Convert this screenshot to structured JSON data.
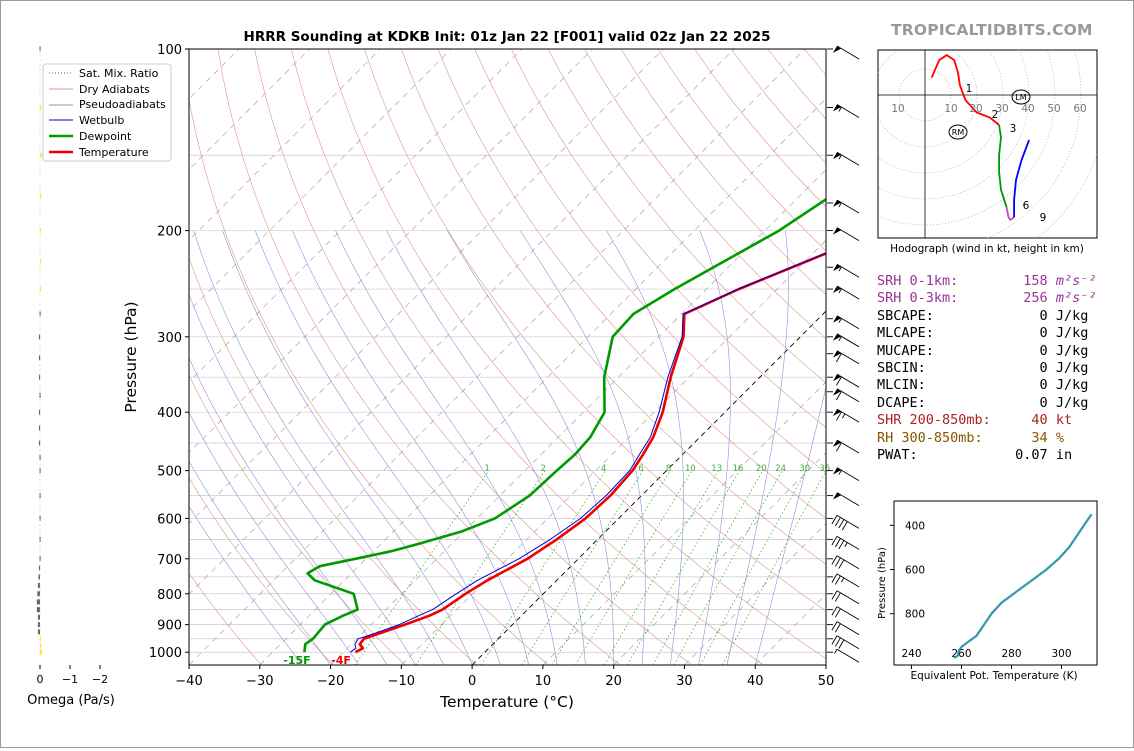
{
  "chart_data": [
    {
      "type": "line",
      "name": "skew-t",
      "title": "HRRR Sounding at KDKB Init: 01z Jan 22 [F001] valid 02z Jan 22 2025",
      "xlabel": "Temperature (°C)",
      "ylabel": "Pressure (hPa)",
      "xlim": [
        -40,
        50
      ],
      "ylim": [
        1050,
        100
      ],
      "y_scale": "log",
      "skew_deg": 45,
      "x_ticks": [
        "−40",
        "−30",
        "−20",
        "−10",
        "0",
        "10",
        "20",
        "30",
        "40",
        "50"
      ],
      "y_ticks": [
        "100",
        "200",
        "300",
        "400",
        "500",
        "600",
        "700",
        "800",
        "900",
        "1000"
      ],
      "legend": [
        "Sat. Mix. Ratio",
        "Dry Adiabats",
        "Pseudoadiabats",
        "Wetbulb",
        "Dewpoint",
        "Temperature"
      ],
      "legend_location": "upper-left",
      "mixing_ratio_labels": [
        "1",
        "2",
        "4",
        "6",
        "8",
        "10",
        "13",
        "16",
        "20",
        "24",
        "30",
        "36"
      ],
      "surface_labels": {
        "dewpoint": "-15F",
        "temperature": "-4F"
      },
      "series": [
        {
          "name": "Temperature",
          "color": "#ee0000",
          "points": [
            [
              1000,
              -18.3
            ],
            [
              985,
              -17.8
            ],
            [
              970,
              -18.8
            ],
            [
              950,
              -19
            ],
            [
              930,
              -17.5
            ],
            [
              900,
              -15.2
            ],
            [
              870,
              -13
            ],
            [
              850,
              -12
            ],
            [
              800,
              -11
            ],
            [
              760,
              -9.8
            ],
            [
              700,
              -7.2
            ],
            [
              650,
              -5.8
            ],
            [
              600,
              -4.7
            ],
            [
              550,
              -4.4
            ],
            [
              500,
              -4.8
            ],
            [
              470,
              -5.6
            ],
            [
              440,
              -6.6
            ],
            [
              400,
              -8.8
            ],
            [
              350,
              -12.6
            ],
            [
              300,
              -16.5
            ],
            [
              275,
              -19.6
            ],
            [
              250,
              -15.4
            ],
            [
              200,
              -3.5
            ],
            [
              170,
              5.1
            ],
            [
              150,
              12.1
            ],
            [
              130,
              21.4
            ],
            [
              115,
              31
            ],
            [
              100,
              43.5
            ]
          ]
        },
        {
          "name": "Wetbulb",
          "color": "#0000cc",
          "points": [
            [
              1000,
              -19
            ],
            [
              985,
              -18.8
            ],
            [
              970,
              -19.5
            ],
            [
              950,
              -19.8
            ],
            [
              930,
              -18.2
            ],
            [
              900,
              -16
            ],
            [
              870,
              -14.5
            ],
            [
              850,
              -13.4
            ],
            [
              800,
              -12.3
            ],
            [
              760,
              -11.2
            ],
            [
              700,
              -8.4
            ],
            [
              650,
              -6.7
            ],
            [
              600,
              -5.4
            ],
            [
              550,
              -5
            ],
            [
              500,
              -5.2
            ],
            [
              470,
              -6.1
            ],
            [
              440,
              -7
            ],
            [
              400,
              -9.3
            ],
            [
              350,
              -13
            ],
            [
              300,
              -16.7
            ],
            [
              275,
              -19.8
            ],
            [
              250,
              -15.5
            ],
            [
              200,
              -3.6
            ],
            [
              170,
              5
            ],
            [
              150,
              12
            ],
            [
              130,
              21.3
            ],
            [
              115,
              30.8
            ],
            [
              100,
              43.2
            ]
          ]
        },
        {
          "name": "Dewpoint",
          "color": "#009900",
          "points": [
            [
              1000,
              -25.5
            ],
            [
              970,
              -26.5
            ],
            [
              950,
              -26.2
            ],
            [
              900,
              -26.5
            ],
            [
              870,
              -25.2
            ],
            [
              850,
              -24
            ],
            [
              800,
              -26.8
            ],
            [
              760,
              -34.2
            ],
            [
              740,
              -36.2
            ],
            [
              720,
              -35.5
            ],
            [
              700,
              -31.5
            ],
            [
              680,
              -27.5
            ],
            [
              660,
              -24.5
            ],
            [
              630,
              -20.3
            ],
            [
              600,
              -17.5
            ],
            [
              550,
              -15.8
            ],
            [
              500,
              -15.5
            ],
            [
              470,
              -15.2
            ],
            [
              440,
              -15.5
            ],
            [
              400,
              -17
            ],
            [
              350,
              -22
            ],
            [
              300,
              -26.5
            ],
            [
              275,
              -26.8
            ],
            [
              250,
              -24.5
            ],
            [
              200,
              -18
            ],
            [
              170,
              -15
            ],
            [
              150,
              -11.5
            ],
            [
              120,
              -3.5
            ],
            [
              100,
              7
            ]
          ]
        }
      ],
      "wind_barbs_kt": [
        {
          "p": 1000,
          "spd": 5
        },
        {
          "p": 950,
          "spd": 30
        },
        {
          "p": 900,
          "spd": 20
        },
        {
          "p": 850,
          "spd": 20
        },
        {
          "p": 800,
          "spd": 20
        },
        {
          "p": 750,
          "spd": 25
        },
        {
          "p": 700,
          "spd": 30
        },
        {
          "p": 650,
          "spd": 35
        },
        {
          "p": 600,
          "spd": 40
        },
        {
          "p": 550,
          "spd": 50
        },
        {
          "p": 500,
          "spd": 55
        },
        {
          "p": 450,
          "spd": 60
        },
        {
          "p": 400,
          "spd": 65
        },
        {
          "p": 370,
          "spd": 60
        },
        {
          "p": 350,
          "spd": 60
        },
        {
          "p": 320,
          "spd": 60
        },
        {
          "p": 300,
          "spd": 55
        },
        {
          "p": 280,
          "spd": 55
        },
        {
          "p": 250,
          "spd": 55
        },
        {
          "p": 230,
          "spd": 55
        },
        {
          "p": 200,
          "spd": 50
        },
        {
          "p": 180,
          "spd": 55
        },
        {
          "p": 150,
          "spd": 55
        },
        {
          "p": 125,
          "spd": 55
        },
        {
          "p": 100,
          "spd": 50
        }
      ]
    },
    {
      "type": "bar",
      "name": "omega",
      "xlabel": "Omega (Pa/s)",
      "x_ticks": [
        "0",
        "−1",
        "−2"
      ],
      "bars": [
        {
          "p": 1000,
          "v": 0.2
        },
        {
          "p": 975,
          "v": 0.1
        },
        {
          "p": 950,
          "v": 0.05
        },
        {
          "p": 925,
          "v": -0.2
        },
        {
          "p": 900,
          "v": -0.2
        },
        {
          "p": 875,
          "v": -0.2
        },
        {
          "p": 850,
          "v": -0.3
        },
        {
          "p": 825,
          "v": -0.3
        },
        {
          "p": 800,
          "v": -0.25
        },
        {
          "p": 775,
          "v": -0.2
        },
        {
          "p": 750,
          "v": -0.15
        },
        {
          "p": 725,
          "v": -0.1
        },
        {
          "p": 700,
          "v": -0.05
        },
        {
          "p": 650,
          "v": -0.05
        },
        {
          "p": 600,
          "v": -0.05
        },
        {
          "p": 550,
          "v": -0.05
        },
        {
          "p": 500,
          "v": -0.05
        },
        {
          "p": 475,
          "v": -0.05
        },
        {
          "p": 450,
          "v": -0.1
        },
        {
          "p": 425,
          "v": -0.1
        },
        {
          "p": 400,
          "v": -0.1
        },
        {
          "p": 375,
          "v": -0.05
        },
        {
          "p": 350,
          "v": -0.1
        },
        {
          "p": 325,
          "v": -0.1
        },
        {
          "p": 300,
          "v": -0.1
        },
        {
          "p": 275,
          "v": -0.05
        },
        {
          "p": 250,
          "v": 0.05
        },
        {
          "p": 225,
          "v": 0.05
        },
        {
          "p": 200,
          "v": 0.05
        },
        {
          "p": 175,
          "v": 0.05
        },
        {
          "p": 150,
          "v": 0.2
        },
        {
          "p": 125,
          "v": 0.05
        },
        {
          "p": 100,
          "v": -0.05
        }
      ]
    },
    {
      "type": "line",
      "name": "hodograph",
      "xlabel": "Hodograph (wind in kt, height in km)",
      "ring_labels": [
        "10",
        "10",
        "20",
        "30",
        "40",
        "50",
        "60"
      ],
      "height_labels": [
        "1",
        "2",
        "3",
        "6",
        "9"
      ],
      "storm_motion_labels": [
        "LM",
        "RM"
      ],
      "segments": [
        {
          "color": "#ff0000",
          "points": [
            [
              2,
              7
            ],
            [
              6,
              14
            ],
            [
              10,
              16
            ],
            [
              14,
              14
            ],
            [
              16,
              9
            ],
            [
              17,
              4
            ]
          ]
        },
        {
          "color": "#ff0000",
          "points": [
            [
              17,
              4
            ],
            [
              20,
              -2
            ],
            [
              26,
              -7
            ],
            [
              33,
              -9
            ],
            [
              38,
              -12
            ]
          ]
        },
        {
          "color": "#009900",
          "points": [
            [
              38,
              -12
            ],
            [
              39,
              -17
            ],
            [
              38,
              -24
            ],
            [
              38,
              -31
            ],
            [
              39,
              -38
            ],
            [
              42,
              -45
            ]
          ]
        },
        {
          "color": "#cc44cc",
          "points": [
            [
              42,
              -45
            ],
            [
              43,
              -49
            ],
            [
              44,
              -50
            ],
            [
              46,
              -49
            ]
          ]
        },
        {
          "color": "#0000ff",
          "points": [
            [
              46,
              -49
            ],
            [
              46,
              -42
            ],
            [
              47,
              -34
            ],
            [
              50,
              -26
            ],
            [
              54,
              -18
            ]
          ]
        }
      ]
    },
    {
      "type": "line",
      "name": "theta-e",
      "xlabel": "Equivalent Pot. Temperature (K)",
      "ylabel": "Pressure (hPa)",
      "x_ticks": [
        "240",
        "260",
        "280",
        "300"
      ],
      "y_ticks": [
        "400",
        "600",
        "800"
      ],
      "color": "#3399aa",
      "points": [
        [
          1000,
          257
        ],
        [
          990,
          258.5
        ],
        [
          965,
          259
        ],
        [
          950,
          260
        ],
        [
          925,
          263
        ],
        [
          900,
          266
        ],
        [
          850,
          269
        ],
        [
          800,
          272
        ],
        [
          750,
          276
        ],
        [
          700,
          282
        ],
        [
          650,
          288
        ],
        [
          600,
          294
        ],
        [
          550,
          299
        ],
        [
          500,
          303
        ],
        [
          450,
          306
        ],
        [
          400,
          309
        ],
        [
          350,
          312
        ]
      ]
    }
  ],
  "site": {
    "brand": "TROPICALTIDBITS.COM"
  },
  "stats": [
    {
      "label": "SRH 0-1km:",
      "value": "158",
      "unit": "m²s⁻²",
      "color": "#993399"
    },
    {
      "label": "SRH 0-3km:",
      "value": "256",
      "unit": "m²s⁻²",
      "color": "#993399"
    },
    {
      "label": "SBCAPE:",
      "value": "0",
      "unit": "J/kg",
      "color": "#000000"
    },
    {
      "label": "MLCAPE:",
      "value": "0",
      "unit": "J/kg",
      "color": "#000000"
    },
    {
      "label": "MUCAPE:",
      "value": "0",
      "unit": "J/kg",
      "color": "#000000"
    },
    {
      "label": "SBCIN:",
      "value": "0",
      "unit": "J/kg",
      "color": "#000000"
    },
    {
      "label": "MLCIN:",
      "value": "0",
      "unit": "J/kg",
      "color": "#000000"
    },
    {
      "label": "DCAPE:",
      "value": "0",
      "unit": "J/kg",
      "color": "#000000"
    },
    {
      "label": "SHR 200-850mb:",
      "value": "40",
      "unit": "kt",
      "color": "#aa2222"
    },
    {
      "label": "RH 300-850mb:",
      "value": "34",
      "unit": "%",
      "color": "#885500"
    },
    {
      "label": "PWAT:",
      "value": "0.07",
      "unit": "in",
      "color": "#000000"
    }
  ]
}
